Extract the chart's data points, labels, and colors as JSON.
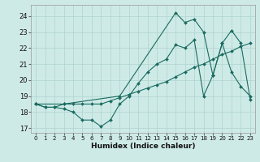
{
  "xlabel": "Humidex (Indice chaleur)",
  "x_ticks": [
    0,
    1,
    2,
    3,
    4,
    5,
    6,
    7,
    8,
    9,
    10,
    11,
    12,
    13,
    14,
    15,
    16,
    17,
    18,
    19,
    20,
    21,
    22,
    23
  ],
  "xlim": [
    -0.5,
    23.5
  ],
  "ylim": [
    16.7,
    24.7
  ],
  "y_ticks": [
    17,
    18,
    19,
    20,
    21,
    22,
    23,
    24
  ],
  "background_color": "#ceeae7",
  "grid_color": "#aed4d0",
  "line_color": "#1a6b60",
  "series1_x": [
    0,
    1,
    2,
    3,
    4,
    5,
    6,
    7,
    8,
    9,
    10,
    11,
    12,
    13,
    14,
    15,
    16,
    17,
    18,
    19,
    20,
    21,
    22,
    23
  ],
  "series1_y": [
    18.5,
    18.3,
    18.3,
    18.2,
    18.0,
    17.5,
    17.5,
    17.1,
    17.5,
    18.5,
    19.0,
    19.8,
    20.5,
    21.0,
    21.3,
    22.2,
    22.0,
    22.5,
    19.0,
    20.3,
    22.3,
    20.5,
    19.6,
    19.0
  ],
  "series2_x": [
    0,
    1,
    2,
    3,
    4,
    5,
    6,
    7,
    8,
    9,
    10,
    11,
    12,
    13,
    14,
    15,
    16,
    17,
    18,
    19,
    20,
    21,
    22,
    23
  ],
  "series2_y": [
    18.5,
    18.3,
    18.3,
    18.5,
    18.5,
    18.5,
    18.5,
    18.5,
    18.7,
    18.9,
    19.1,
    19.3,
    19.5,
    19.7,
    19.9,
    20.2,
    20.5,
    20.8,
    21.0,
    21.3,
    21.6,
    21.8,
    22.1,
    22.3
  ],
  "series3_x": [
    0,
    3,
    9,
    15,
    16,
    17,
    18,
    19,
    20,
    21,
    22,
    23
  ],
  "series3_y": [
    18.5,
    18.5,
    19.0,
    24.2,
    23.6,
    23.8,
    23.0,
    20.3,
    22.3,
    23.1,
    22.3,
    18.8
  ]
}
